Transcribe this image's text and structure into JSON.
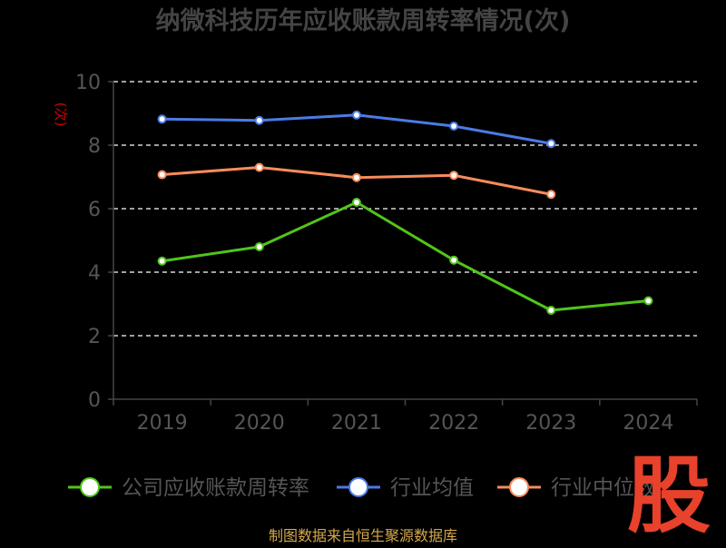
{
  "chart_data": {
    "type": "line",
    "title": "纳微科技历年应收账款周转率情况(次)",
    "ylabel": "(次)",
    "xlabel": "",
    "categories": [
      "2019",
      "2020",
      "2021",
      "2022",
      "2023",
      "2024"
    ],
    "ylim": [
      0,
      10
    ],
    "yticks": [
      0,
      2,
      4,
      6,
      8,
      10
    ],
    "grid": true,
    "legend_position": "bottom",
    "series": [
      {
        "name": "公司应收账款周转率",
        "color": "#52c41a",
        "values": [
          4.35,
          4.8,
          6.2,
          4.38,
          2.8,
          3.1
        ]
      },
      {
        "name": "行业均值",
        "color": "#4b7be5",
        "values": [
          8.82,
          8.78,
          8.95,
          8.6,
          8.05,
          null
        ]
      },
      {
        "name": "行业中位数",
        "color": "#f68c5b",
        "values": [
          7.07,
          7.3,
          6.98,
          7.05,
          6.45,
          null
        ]
      }
    ]
  },
  "footer": {
    "source": "制图数据来自恒生聚源数据库"
  },
  "watermark": {
    "text": "股",
    "color": "#e8412c"
  },
  "colors": {
    "background": "#000000",
    "axis": "#444444",
    "grid": "#ffffff",
    "title": "#444444",
    "tick_label": "#555555",
    "ylabel": "#d00000",
    "source": "#d4a84b"
  }
}
